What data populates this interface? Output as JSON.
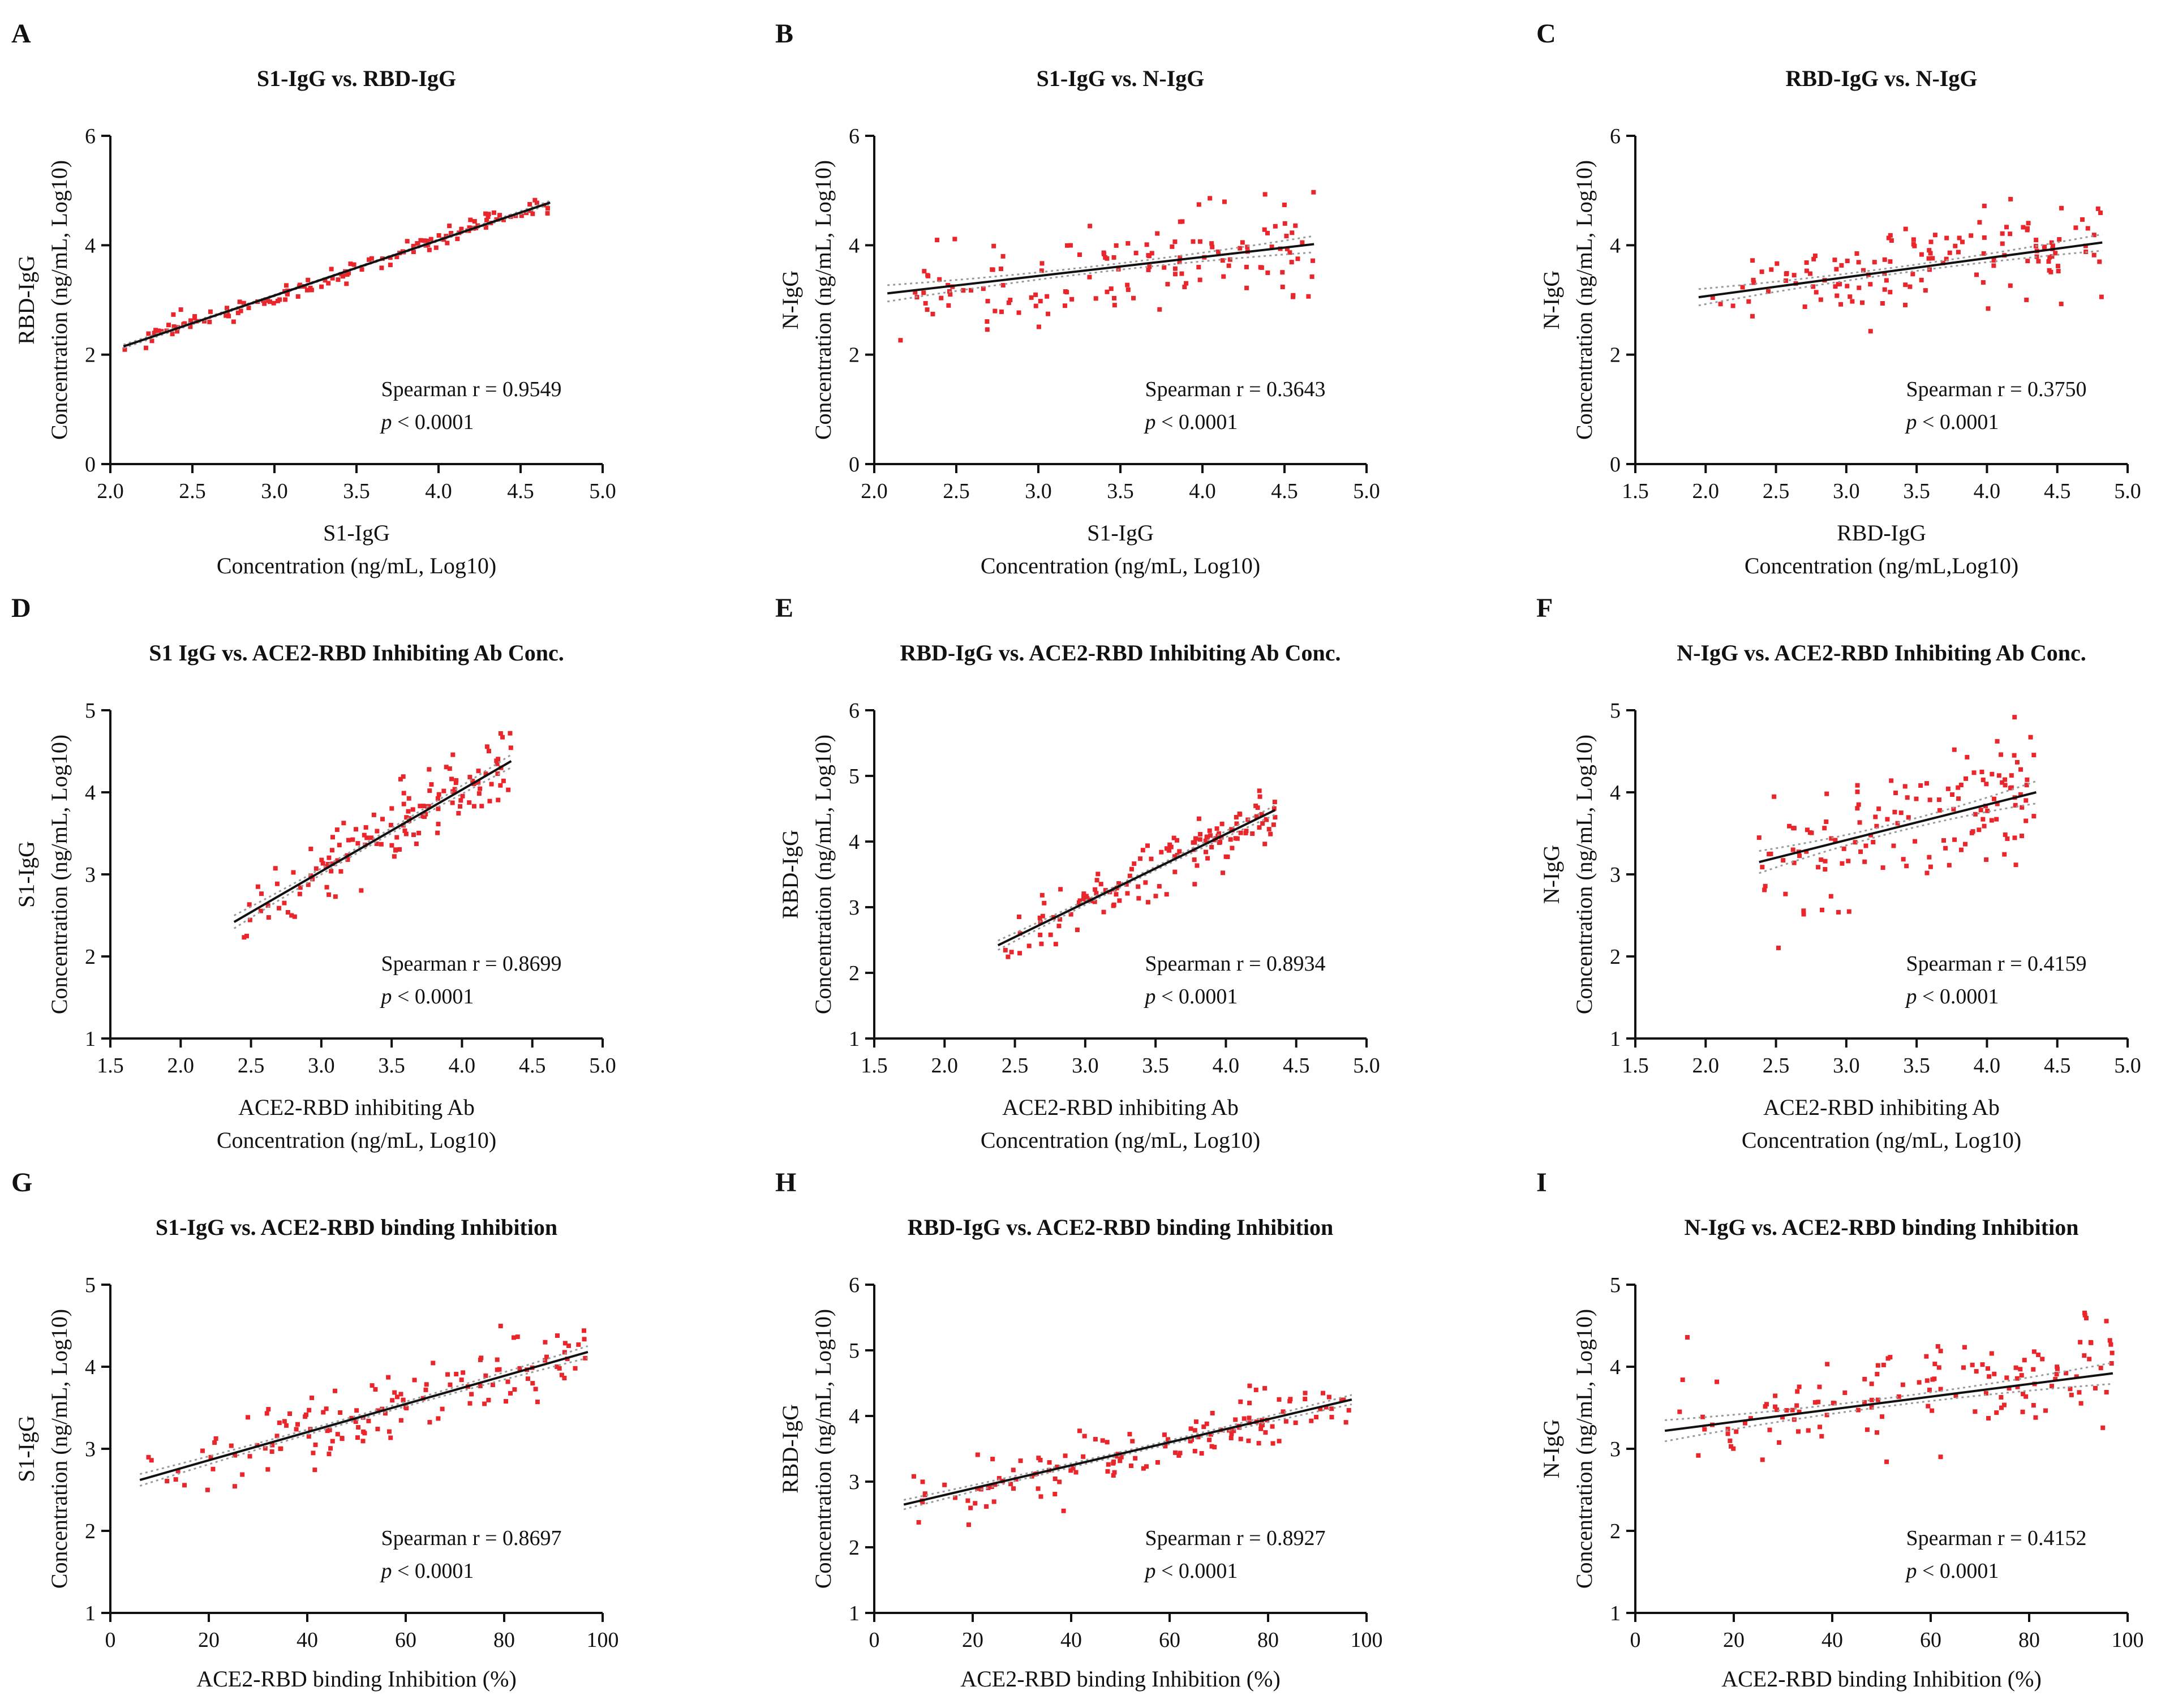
{
  "figure": {
    "colors": {
      "point": "#e8262b",
      "fit": "#111111",
      "ci": "#9a9a9a",
      "axis": "#111111"
    }
  },
  "chart_data": [
    {
      "type": "scatter",
      "panel": "A",
      "title": "S1-IgG vs. RBD-IgG",
      "xlabel": [
        "S1-IgG",
        "Concentration (ng/mL, Log10)"
      ],
      "ylabel": [
        "RBD-IgG",
        "Concentration (ng/mL, Log10)"
      ],
      "xlim": [
        2.0,
        5.0
      ],
      "ylim": [
        0,
        6
      ],
      "xticks": [
        "2.0",
        "2.5",
        "3.0",
        "3.5",
        "4.0",
        "4.5",
        "5.0"
      ],
      "yticks": [
        "0",
        "2",
        "4",
        "6"
      ],
      "fit": {
        "x1": 2.08,
        "y1": 2.15,
        "x2": 4.68,
        "y2": 4.78
      },
      "stat": "Spearman r = 0.9549",
      "p_symbol": "p",
      "p_value": " < 0.0001",
      "spread": 0.09,
      "xrange": [
        2.08,
        4.68
      ],
      "n": 140,
      "seed": 11
    },
    {
      "type": "scatter",
      "panel": "B",
      "title": "S1-IgG vs. N-IgG",
      "xlabel": [
        "S1-IgG",
        "Concentration (ng/mL, Log10)"
      ],
      "ylabel": [
        "N-IgG",
        "Concentration (ng/mL, Log10)"
      ],
      "xlim": [
        2.0,
        5.0
      ],
      "ylim": [
        0,
        6
      ],
      "xticks": [
        "2.0",
        "2.5",
        "3.0",
        "3.5",
        "4.0",
        "4.5",
        "5.0"
      ],
      "yticks": [
        "0",
        "2",
        "4",
        "6"
      ],
      "fit": {
        "x1": 2.08,
        "y1": 3.12,
        "x2": 4.68,
        "y2": 4.02
      },
      "stat": "Spearman r = 0.3643",
      "p_symbol": "p",
      "p_value": " < 0.0001",
      "spread": 0.42,
      "xrange": [
        2.08,
        4.68
      ],
      "n": 140,
      "seed": 23
    },
    {
      "type": "scatter",
      "panel": "C",
      "title": "RBD-IgG vs. N-IgG",
      "xlabel": [
        "RBD-IgG",
        "Concentration (ng/mL,Log10)"
      ],
      "ylabel": [
        "N-IgG",
        "Concentration (ng/mL, Log10)"
      ],
      "xlim": [
        1.5,
        5.0
      ],
      "ylim": [
        0,
        6
      ],
      "xticks": [
        "1.5",
        "2.0",
        "2.5",
        "3.0",
        "3.5",
        "4.0",
        "4.5",
        "5.0"
      ],
      "yticks": [
        "0",
        "2",
        "4",
        "6"
      ],
      "fit": {
        "x1": 1.95,
        "y1": 3.05,
        "x2": 4.82,
        "y2": 4.05
      },
      "stat": "Spearman r = 0.3750",
      "p_symbol": "p",
      "p_value": " < 0.0001",
      "spread": 0.42,
      "xrange": [
        1.95,
        4.82
      ],
      "n": 140,
      "seed": 37
    },
    {
      "type": "scatter",
      "panel": "D",
      "title": "S1 IgG vs. ACE2-RBD Inhibiting Ab Conc.",
      "xlabel": [
        "ACE2-RBD inhibiting Ab",
        "Concentration (ng/mL, Log10)"
      ],
      "ylabel": [
        "S1-IgG",
        "Concentration (ng/mL, Log10)"
      ],
      "xlim": [
        1.5,
        5.0
      ],
      "ylim": [
        1,
        5
      ],
      "xticks": [
        "1.5",
        "2.0",
        "2.5",
        "3.0",
        "3.5",
        "4.0",
        "4.5",
        "5.0"
      ],
      "yticks": [
        "1",
        "2",
        "3",
        "4",
        "5"
      ],
      "fit": {
        "x1": 2.38,
        "y1": 2.42,
        "x2": 4.35,
        "y2": 4.38
      },
      "stat": "Spearman r = 0.8699",
      "p_symbol": "p",
      "p_value": " < 0.0001",
      "spread": 0.22,
      "xrange": [
        2.38,
        4.35
      ],
      "n": 140,
      "seed": 41
    },
    {
      "type": "scatter",
      "panel": "E",
      "title": "RBD-IgG vs. ACE2-RBD Inhibiting Ab Conc.",
      "xlabel": [
        "ACE2-RBD inhibiting Ab",
        "Concentration (ng/mL, Log10)"
      ],
      "ylabel": [
        "RBD-IgG",
        "Concentration (ng/mL, Log10)"
      ],
      "xlim": [
        1.5,
        5.0
      ],
      "ylim": [
        1,
        6
      ],
      "xticks": [
        "1.5",
        "2.0",
        "2.5",
        "3.0",
        "3.5",
        "4.0",
        "4.5",
        "5.0"
      ],
      "yticks": [
        "1",
        "2",
        "3",
        "4",
        "5",
        "6"
      ],
      "fit": {
        "x1": 2.38,
        "y1": 2.42,
        "x2": 4.35,
        "y2": 4.48
      },
      "stat": "Spearman r = 0.8934",
      "p_symbol": "p",
      "p_value": " < 0.0001",
      "spread": 0.2,
      "xrange": [
        2.38,
        4.35
      ],
      "n": 140,
      "seed": 53
    },
    {
      "type": "scatter",
      "panel": "F",
      "title": "N-IgG vs. ACE2-RBD Inhibiting Ab Conc.",
      "xlabel": [
        "ACE2-RBD inhibiting Ab",
        "Concentration (ng/mL, Log10)"
      ],
      "ylabel": [
        "N-IgG",
        "Concentration (ng/mL, Log10)"
      ],
      "xlim": [
        1.5,
        5.0
      ],
      "ylim": [
        1,
        5
      ],
      "xticks": [
        "1.5",
        "2.0",
        "2.5",
        "3.0",
        "3.5",
        "4.0",
        "4.5",
        "5.0"
      ],
      "yticks": [
        "1",
        "2",
        "3",
        "4",
        "5"
      ],
      "fit": {
        "x1": 2.38,
        "y1": 3.15,
        "x2": 4.35,
        "y2": 4.0
      },
      "stat": "Spearman r = 0.4159",
      "p_symbol": "p",
      "p_value": " < 0.0001",
      "spread": 0.38,
      "xrange": [
        2.38,
        4.35
      ],
      "n": 140,
      "seed": 67
    },
    {
      "type": "scatter",
      "panel": "G",
      "title": "S1-IgG vs. ACE2-RBD binding Inhibition",
      "xlabel": [
        "ACE2-RBD binding Inhibition (%)"
      ],
      "ylabel": [
        "S1-IgG",
        "Concentration (ng/mL, Log10)"
      ],
      "xlim": [
        0,
        100
      ],
      "ylim": [
        1,
        5
      ],
      "xticks": [
        "0",
        "20",
        "40",
        "60",
        "80",
        "100"
      ],
      "yticks": [
        "1",
        "2",
        "3",
        "4",
        "5"
      ],
      "fit": {
        "x1": 6,
        "y1": 2.62,
        "x2": 97,
        "y2": 4.18
      },
      "stat": "Spearman r = 0.8697",
      "p_symbol": "p",
      "p_value": " < 0.0001",
      "spread": 0.2,
      "xrange": [
        6,
        97
      ],
      "n": 140,
      "seed": 79
    },
    {
      "type": "scatter",
      "panel": "H",
      "title": "RBD-IgG vs. ACE2-RBD binding Inhibition",
      "xlabel": [
        "ACE2-RBD binding Inhibition (%)"
      ],
      "ylabel": [
        "RBD-IgG",
        "Concentration (ng/mL, Log10)"
      ],
      "xlim": [
        0,
        100
      ],
      "ylim": [
        1,
        6
      ],
      "xticks": [
        "0",
        "20",
        "40",
        "60",
        "80",
        "100"
      ],
      "yticks": [
        "1",
        "2",
        "3",
        "4",
        "5",
        "6"
      ],
      "fit": {
        "x1": 6,
        "y1": 2.65,
        "x2": 97,
        "y2": 4.25
      },
      "stat": "Spearman r = 0.8927",
      "p_symbol": "p",
      "p_value": " < 0.0001",
      "spread": 0.2,
      "xrange": [
        6,
        97
      ],
      "n": 140,
      "seed": 83
    },
    {
      "type": "scatter",
      "panel": "I",
      "title": "N-IgG vs. ACE2-RBD binding Inhibition",
      "xlabel": [
        "ACE2-RBD binding Inhibition (%)"
      ],
      "ylabel": [
        "N-IgG",
        "Concentration (ng/mL, Log10)"
      ],
      "xlim": [
        0,
        100
      ],
      "ylim": [
        1,
        5
      ],
      "xticks": [
        "0",
        "20",
        "40",
        "60",
        "80",
        "100"
      ],
      "yticks": [
        "1",
        "2",
        "3",
        "4",
        "5"
      ],
      "fit": {
        "x1": 6,
        "y1": 3.22,
        "x2": 97,
        "y2": 3.92
      },
      "stat": "Spearman r = 0.4152",
      "p_symbol": "p",
      "p_value": " < 0.0001",
      "spread": 0.36,
      "xrange": [
        6,
        97
      ],
      "n": 140,
      "seed": 97
    }
  ]
}
